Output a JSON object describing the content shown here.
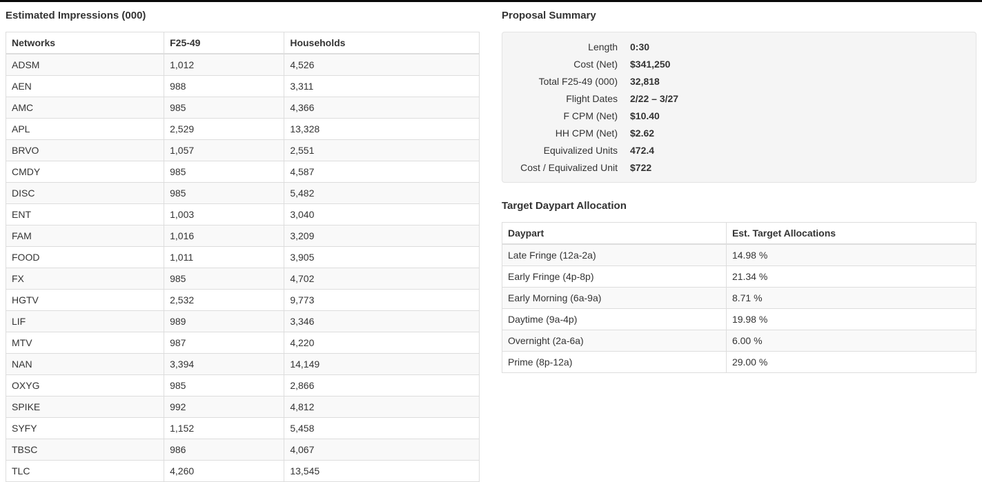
{
  "impressions": {
    "title": "Estimated Impressions (000)",
    "headers": [
      "Networks",
      "F25-49",
      "Households"
    ],
    "rows": [
      [
        "ADSM",
        "1,012",
        "4,526"
      ],
      [
        "AEN",
        "988",
        "3,311"
      ],
      [
        "AMC",
        "985",
        "4,366"
      ],
      [
        "APL",
        "2,529",
        "13,328"
      ],
      [
        "BRVO",
        "1,057",
        "2,551"
      ],
      [
        "CMDY",
        "985",
        "4,587"
      ],
      [
        "DISC",
        "985",
        "5,482"
      ],
      [
        "ENT",
        "1,003",
        "3,040"
      ],
      [
        "FAM",
        "1,016",
        "3,209"
      ],
      [
        "FOOD",
        "1,011",
        "3,905"
      ],
      [
        "FX",
        "985",
        "4,702"
      ],
      [
        "HGTV",
        "2,532",
        "9,773"
      ],
      [
        "LIF",
        "989",
        "3,346"
      ],
      [
        "MTV",
        "987",
        "4,220"
      ],
      [
        "NAN",
        "3,394",
        "14,149"
      ],
      [
        "OXYG",
        "985",
        "2,866"
      ],
      [
        "SPIKE",
        "992",
        "4,812"
      ],
      [
        "SYFY",
        "1,152",
        "5,458"
      ],
      [
        "TBSC",
        "986",
        "4,067"
      ],
      [
        "TLC",
        "4,260",
        "13,545"
      ]
    ]
  },
  "proposal_summary": {
    "title": "Proposal Summary",
    "items": [
      {
        "label": "Length",
        "value": "0:30"
      },
      {
        "label": "Cost (Net)",
        "value": "$341,250"
      },
      {
        "label": "Total F25-49 (000)",
        "value": "32,818"
      },
      {
        "label": "Flight Dates",
        "value": "2/22 – 3/27"
      },
      {
        "label": "F CPM (Net)",
        "value": "$10.40"
      },
      {
        "label": "HH CPM (Net)",
        "value": "$2.62"
      },
      {
        "label": "Equivalized Units",
        "value": "472.4"
      },
      {
        "label": "Cost / Equivalized Unit",
        "value": "$722"
      }
    ]
  },
  "daypart_allocation": {
    "title": "Target Daypart Allocation",
    "headers": [
      "Daypart",
      "Est. Target Allocations"
    ],
    "rows": [
      [
        "Late Fringe (12a-2a)",
        "14.98 %"
      ],
      [
        "Early Fringe (4p-8p)",
        "21.34 %"
      ],
      [
        "Early Morning (6a-9a)",
        "8.71 %"
      ],
      [
        "Daytime (9a-4p)",
        "19.98 %"
      ],
      [
        "Overnight (2a-6a)",
        "6.00 %"
      ],
      [
        "Prime (8p-12a)",
        "29.00 %"
      ]
    ]
  }
}
